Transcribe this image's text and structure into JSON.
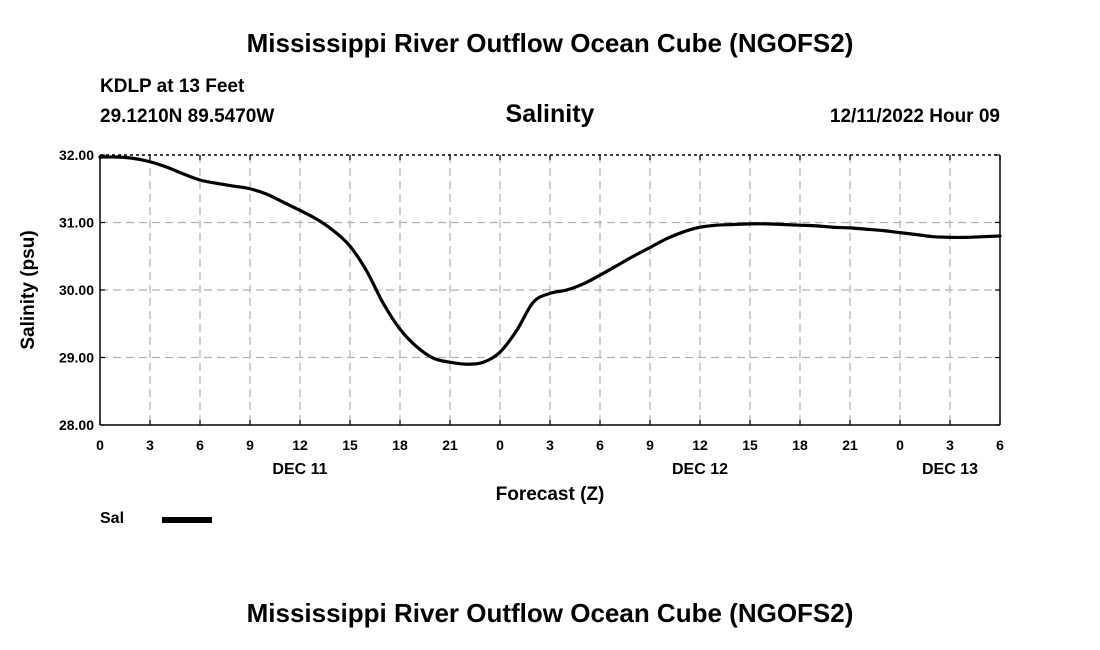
{
  "header": {
    "title": "Mississippi River Outflow Ocean Cube (NGOFS2)",
    "station": "KDLP at 13 Feet",
    "coords": "29.1210N  89.5470W",
    "plot_title": "Salinity",
    "datetime": "12/11/2022 Hour 09"
  },
  "footer": {
    "title": "Mississippi River Outflow Ocean Cube (NGOFS2)"
  },
  "legend": {
    "label": "Sal"
  },
  "chart_data": {
    "type": "line",
    "title": "Salinity",
    "xlabel": "Forecast (Z)",
    "ylabel": "Salinity (psu)",
    "xlim": [
      0,
      54
    ],
    "ylim": [
      28,
      32
    ],
    "yticks": [
      28,
      29,
      30,
      31,
      32
    ],
    "ytick_labels": [
      "28.00",
      "29.00",
      "30.00",
      "31.00",
      "32.00"
    ],
    "xticks": [
      0,
      3,
      6,
      9,
      12,
      15,
      18,
      21,
      24,
      27,
      30,
      33,
      36,
      39,
      42,
      45,
      48,
      51,
      54
    ],
    "xtick_labels": [
      "0",
      "3",
      "6",
      "9",
      "12",
      "15",
      "18",
      "21",
      "0",
      "3",
      "6",
      "9",
      "12",
      "15",
      "18",
      "21",
      "0",
      "3",
      "6"
    ],
    "day_labels": [
      {
        "x": 12,
        "label": "DEC 11"
      },
      {
        "x": 36,
        "label": "DEC 12"
      },
      {
        "x": 51,
        "label": "DEC 13"
      }
    ],
    "grid": true,
    "line_color": "#000000",
    "series": [
      {
        "name": "Sal",
        "x": [
          0,
          1,
          2,
          3,
          4,
          5,
          6,
          7,
          8,
          9,
          10,
          11,
          12,
          13,
          14,
          15,
          16,
          17,
          18,
          19,
          20,
          21,
          22,
          23,
          24,
          25,
          26,
          27,
          28,
          29,
          30,
          31,
          32,
          33,
          34,
          35,
          36,
          37,
          38,
          39,
          40,
          41,
          42,
          43,
          44,
          45,
          46,
          47,
          48,
          49,
          50,
          51,
          52,
          53,
          54
        ],
        "values": [
          31.97,
          31.97,
          31.95,
          31.9,
          31.82,
          31.72,
          31.63,
          31.58,
          31.54,
          31.5,
          31.42,
          31.3,
          31.18,
          31.05,
          30.88,
          30.65,
          30.28,
          29.8,
          29.42,
          29.16,
          28.99,
          28.93,
          28.9,
          28.93,
          29.08,
          29.4,
          29.82,
          29.95,
          30.0,
          30.09,
          30.22,
          30.36,
          30.5,
          30.63,
          30.76,
          30.86,
          30.93,
          30.96,
          30.97,
          30.98,
          30.98,
          30.97,
          30.96,
          30.95,
          30.93,
          30.92,
          30.9,
          30.88,
          30.85,
          30.82,
          30.79,
          30.78,
          30.78,
          30.79,
          30.8
        ]
      }
    ]
  }
}
